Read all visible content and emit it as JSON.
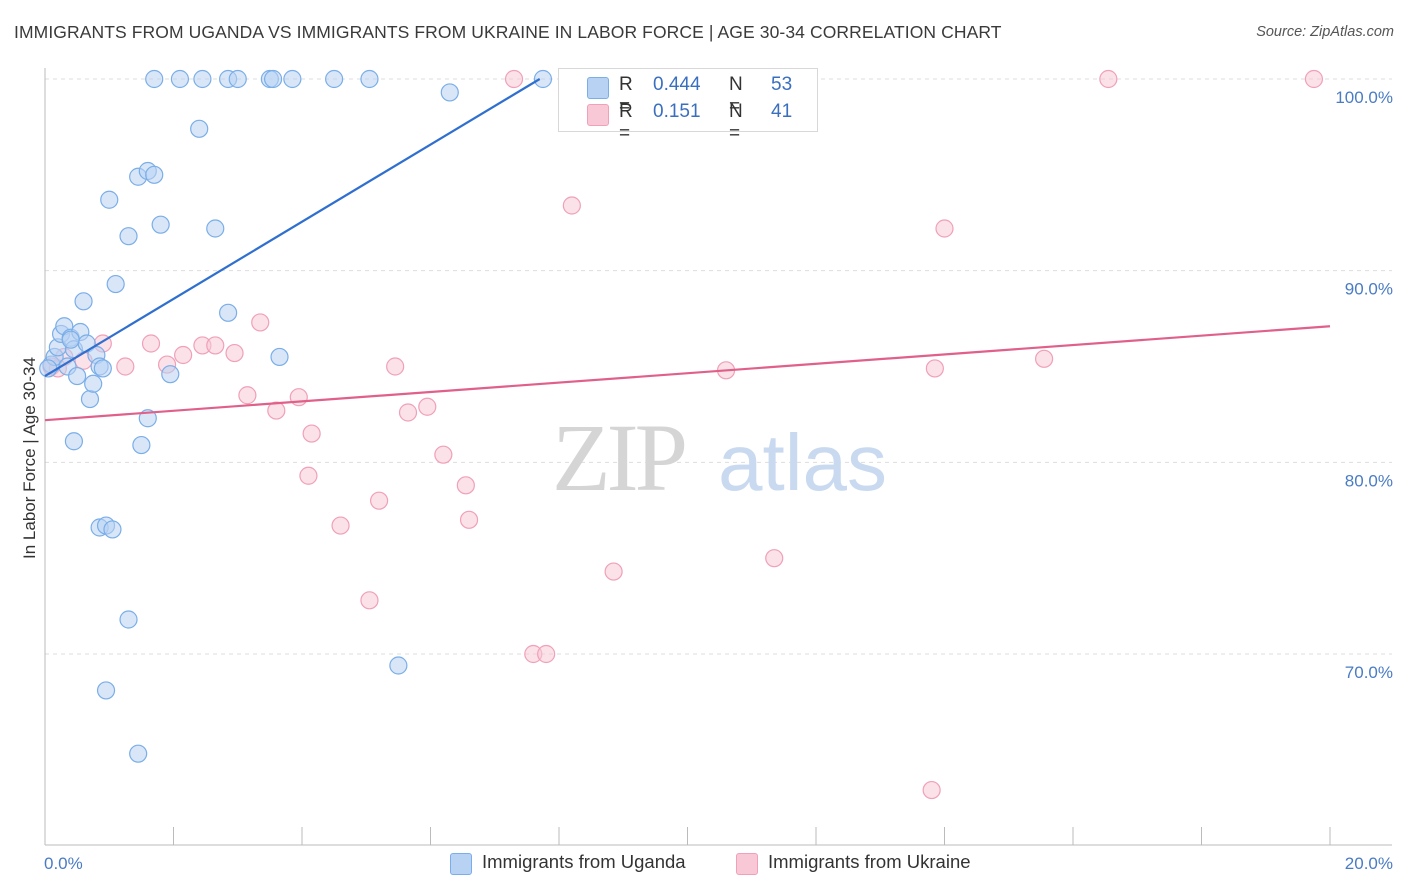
{
  "title": "IMMIGRANTS FROM UGANDA VS IMMIGRANTS FROM UKRAINE IN LABOR FORCE | AGE 30-34 CORRELATION CHART",
  "source": "Source: ZipAtlas.com",
  "watermark": {
    "zip": "ZIP",
    "atlas": "atlas"
  },
  "legend_top": {
    "rows": [
      {
        "r_label": "R =",
        "r_value": "0.444",
        "n_label": "N =",
        "n_value": "53"
      },
      {
        "r_label": "R =",
        "r_value": "0.151",
        "n_label": "N =",
        "n_value": "41"
      }
    ]
  },
  "chart_data": {
    "type": "scatter",
    "title": "IMMIGRANTS FROM UGANDA VS IMMIGRANTS FROM UKRAINE IN LABOR FORCE | AGE 30-34 CORRELATION CHART",
    "ylabel": "In Labor Force | Age 30-34",
    "xlabel": "",
    "xlim": [
      0,
      20
    ],
    "ylim": [
      61,
      101
    ],
    "x_tick_labels": [
      "0.0%",
      "20.0%"
    ],
    "y_tick_labels": [
      "70.0%",
      "80.0%",
      "90.0%",
      "100.0%"
    ],
    "y_ticks": [
      70,
      80,
      90,
      100
    ],
    "x_minor_ticks": [
      0,
      2,
      4,
      6,
      8,
      10,
      12,
      14,
      16,
      18,
      20
    ],
    "series": [
      {
        "name": "Immigrants from Uganda",
        "color": "#7aaee8",
        "fill": "#b8d2f3",
        "line_color": "#2f6fcf",
        "trend": {
          "x0": 0.0,
          "y0": 84.5,
          "x1": 7.7,
          "y1": 100.0
        },
        "points": [
          [
            0.1,
            85.1
          ],
          [
            0.15,
            85.5
          ],
          [
            0.2,
            86.0
          ],
          [
            0.25,
            86.7
          ],
          [
            0.3,
            87.1
          ],
          [
            0.35,
            85.0
          ],
          [
            0.4,
            86.5
          ],
          [
            0.45,
            85.9
          ],
          [
            0.5,
            84.5
          ],
          [
            0.55,
            86.8
          ],
          [
            0.6,
            88.4
          ],
          [
            0.65,
            86.2
          ],
          [
            0.7,
            83.3
          ],
          [
            0.75,
            84.1
          ],
          [
            0.8,
            85.6
          ],
          [
            0.85,
            85.0
          ],
          [
            0.45,
            81.1
          ],
          [
            0.9,
            84.9
          ],
          [
            1.0,
            93.7
          ],
          [
            1.1,
            89.3
          ],
          [
            1.3,
            91.8
          ],
          [
            1.45,
            94.9
          ],
          [
            1.6,
            95.2
          ],
          [
            1.7,
            95.0
          ],
          [
            1.8,
            92.4
          ],
          [
            1.95,
            84.6
          ],
          [
            1.6,
            82.3
          ],
          [
            1.5,
            80.9
          ],
          [
            0.85,
            76.6
          ],
          [
            0.95,
            76.7
          ],
          [
            1.05,
            76.5
          ],
          [
            1.3,
            71.8
          ],
          [
            0.95,
            68.1
          ],
          [
            1.45,
            64.8
          ],
          [
            1.7,
            100.0
          ],
          [
            2.1,
            100.0
          ],
          [
            2.45,
            100.0
          ],
          [
            2.85,
            100.0
          ],
          [
            3.0,
            100.0
          ],
          [
            3.5,
            100.0
          ],
          [
            3.55,
            100.0
          ],
          [
            3.85,
            100.0
          ],
          [
            4.5,
            100.0
          ],
          [
            2.4,
            97.4
          ],
          [
            2.65,
            92.2
          ],
          [
            2.85,
            87.8
          ],
          [
            3.65,
            85.5
          ],
          [
            5.05,
            100.0
          ],
          [
            6.3,
            99.3
          ],
          [
            7.75,
            100.0
          ],
          [
            5.5,
            69.4
          ],
          [
            0.05,
            84.9
          ],
          [
            0.4,
            86.4
          ]
        ]
      },
      {
        "name": "Immigrants from Ukraine",
        "color": "#f0a0b8",
        "fill": "#f8c8d6",
        "line_color": "#e0608a",
        "trend": {
          "x0": 0.0,
          "y0": 82.2,
          "x1": 20.0,
          "y1": 87.1
        },
        "points": [
          [
            0.1,
            85.0
          ],
          [
            0.3,
            85.5
          ],
          [
            0.6,
            85.3
          ],
          [
            0.9,
            86.2
          ],
          [
            1.25,
            85.0
          ],
          [
            1.65,
            86.2
          ],
          [
            1.9,
            85.1
          ],
          [
            2.15,
            85.6
          ],
          [
            2.45,
            86.1
          ],
          [
            2.65,
            86.1
          ],
          [
            2.95,
            85.7
          ],
          [
            3.15,
            83.5
          ],
          [
            3.35,
            87.3
          ],
          [
            3.6,
            82.7
          ],
          [
            3.95,
            83.4
          ],
          [
            4.15,
            81.5
          ],
          [
            4.1,
            79.3
          ],
          [
            4.6,
            76.7
          ],
          [
            5.05,
            72.8
          ],
          [
            5.2,
            78.0
          ],
          [
            5.45,
            85.0
          ],
          [
            5.65,
            82.6
          ],
          [
            5.95,
            82.9
          ],
          [
            6.2,
            80.4
          ],
          [
            6.55,
            78.8
          ],
          [
            6.6,
            77.0
          ],
          [
            7.6,
            70.0
          ],
          [
            7.8,
            70.0
          ],
          [
            8.2,
            93.4
          ],
          [
            8.85,
            74.3
          ],
          [
            10.25,
            100.0
          ],
          [
            10.6,
            84.8
          ],
          [
            11.35,
            75.0
          ],
          [
            13.85,
            84.9
          ],
          [
            14.0,
            92.2
          ],
          [
            13.8,
            62.9
          ],
          [
            15.55,
            85.4
          ],
          [
            16.55,
            100.0
          ],
          [
            19.75,
            100.0
          ],
          [
            7.3,
            100.0
          ],
          [
            0.2,
            84.9
          ]
        ]
      }
    ]
  },
  "bottom_legend": [
    {
      "label": "Immigrants from Uganda"
    },
    {
      "label": "Immigrants from Ukraine"
    }
  ]
}
